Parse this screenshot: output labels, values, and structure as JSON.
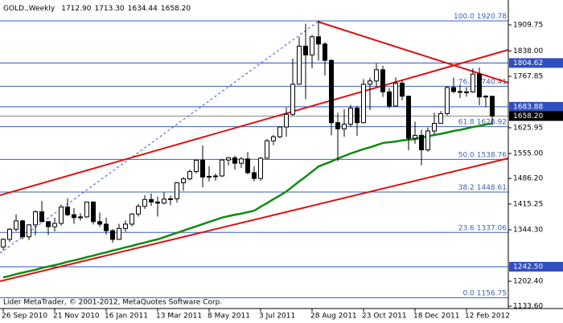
{
  "chart_data": {
    "type": "candlestick",
    "header": {
      "symbol": "GOLD.,Weekly",
      "ohlc": [
        {
          "value": 1712.9,
          "label": "1712.90"
        },
        {
          "value": 1713.3,
          "label": "1713.30"
        },
        {
          "value": 1634.44,
          "label": "1634.44"
        },
        {
          "value": 1658.2,
          "label": "1658.20"
        }
      ]
    },
    "footer": "Lider MetaTrader, © 2001-2012, MetaQuotes Software Corp.",
    "categories": [
      "26 Sep 2010",
      null,
      null,
      null,
      null,
      null,
      null,
      null,
      "21 Nov 2010",
      null,
      null,
      null,
      null,
      null,
      null,
      null,
      "16 Jan 2011",
      null,
      null,
      null,
      null,
      null,
      null,
      null,
      "13 Mar 2011",
      null,
      null,
      null,
      null,
      null,
      null,
      null,
      "8 May 2011",
      null,
      null,
      null,
      null,
      null,
      null,
      null,
      "3 Jul 2011",
      null,
      null,
      null,
      null,
      null,
      null,
      null,
      "28 Aug 2011",
      null,
      null,
      null,
      null,
      null,
      null,
      null,
      "23 Oct 2011",
      null,
      null,
      null,
      null,
      null,
      null,
      null,
      "18 Dec 2011",
      null,
      null,
      null,
      null,
      null,
      null,
      null,
      "12 Feb 2012",
      null,
      null,
      null,
      null
    ],
    "open": [
      1297,
      1318,
      1346,
      1369,
      1325,
      1358,
      1394,
      1367,
      1353,
      1362,
      1407,
      1386,
      1378,
      1380,
      1421,
      1367,
      1360,
      1342,
      1318,
      1348,
      1360,
      1388,
      1409,
      1428,
      1421,
      1418,
      1429,
      1430,
      1474,
      1485,
      1505,
      1536,
      1490,
      1492,
      1493,
      1537,
      1543,
      1528,
      1540,
      1502,
      1486,
      1542,
      1590,
      1601,
      1628,
      1663,
      1746,
      1851,
      1827,
      1877,
      1857,
      1812,
      1640,
      1623,
      1636,
      1680,
      1640,
      1746,
      1755,
      1786,
      1725,
      1686,
      1749,
      1713,
      1597,
      1605,
      1565,
      1617,
      1638,
      1665,
      1737,
      1726,
      1724,
      1725,
      1774,
      1711,
      1712.9
    ],
    "high": [
      1321,
      1349,
      1387,
      1372,
      1360,
      1398,
      1424,
      1368,
      1378,
      1414,
      1431,
      1404,
      1390,
      1421,
      1423,
      1392,
      1378,
      1346,
      1361,
      1370,
      1390,
      1416,
      1440,
      1445,
      1436,
      1448,
      1439,
      1476,
      1490,
      1511,
      1536,
      1577,
      1520,
      1500,
      1538,
      1545,
      1549,
      1545,
      1559,
      1520,
      1545,
      1595,
      1606,
      1630,
      1682,
      1817,
      1877,
      1913,
      1882,
      1921,
      1862,
      1814,
      1667,
      1677,
      1689,
      1687,
      1760,
      1764,
      1803,
      1797,
      1735,
      1765,
      1757,
      1714,
      1643,
      1620,
      1627,
      1667,
      1672,
      1740,
      1764,
      1745,
      1738,
      1790,
      1792,
      1716,
      1713.3
    ],
    "low": [
      1288,
      1311,
      1340,
      1318,
      1316,
      1329,
      1365,
      1330,
      1340,
      1356,
      1382,
      1361,
      1370,
      1377,
      1359,
      1352,
      1331,
      1309,
      1317,
      1339,
      1354,
      1381,
      1402,
      1410,
      1381,
      1415,
      1412,
      1420,
      1452,
      1481,
      1500,
      1462,
      1478,
      1480,
      1490,
      1522,
      1510,
      1515,
      1497,
      1478,
      1480,
      1541,
      1578,
      1597,
      1601,
      1659,
      1744,
      1705,
      1790,
      1811,
      1770,
      1605,
      1534,
      1601,
      1628,
      1604,
      1638,
      1675,
      1740,
      1711,
      1680,
      1685,
      1702,
      1564,
      1582,
      1522,
      1560,
      1608,
      1637,
      1660,
      1721,
      1708,
      1712,
      1722,
      1688,
      1683,
      1634.44
    ],
    "close": [
      1318,
      1346,
      1369,
      1325,
      1358,
      1394,
      1367,
      1353,
      1362,
      1407,
      1386,
      1378,
      1380,
      1421,
      1367,
      1360,
      1342,
      1318,
      1348,
      1360,
      1388,
      1409,
      1428,
      1421,
      1418,
      1429,
      1430,
      1474,
      1485,
      1505,
      1536,
      1490,
      1492,
      1493,
      1537,
      1543,
      1528,
      1540,
      1502,
      1486,
      1542,
      1590,
      1601,
      1628,
      1663,
      1746,
      1851,
      1827,
      1877,
      1857,
      1812,
      1640,
      1623,
      1636,
      1680,
      1640,
      1746,
      1755,
      1786,
      1725,
      1686,
      1749,
      1713,
      1597,
      1605,
      1565,
      1617,
      1638,
      1665,
      1737,
      1726,
      1724,
      1725,
      1774,
      1711,
      1713,
      1658.2
    ],
    "moving_average": {
      "color": "#118a11",
      "values": [
        1213,
        1217,
        1222,
        1226,
        1230,
        1234,
        1239,
        1243,
        1247,
        1251,
        1256,
        1260,
        1264,
        1269,
        1273,
        1278,
        1282,
        1287,
        1291,
        1296,
        1300,
        1305,
        1309,
        1314,
        1318,
        1324,
        1330,
        1336,
        1342,
        1348,
        1354,
        1360,
        1366,
        1372,
        1378,
        1382,
        1386,
        1389,
        1393,
        1397,
        1408,
        1418,
        1429,
        1439,
        1450,
        1464,
        1478,
        1491,
        1505,
        1519,
        1526,
        1533,
        1541,
        1548,
        1555,
        1561,
        1567,
        1572,
        1578,
        1584,
        1586,
        1588,
        1591,
        1593,
        1595,
        1599,
        1602,
        1606,
        1609,
        1613,
        1617,
        1620,
        1624,
        1628,
        1631,
        1635,
        1638
      ]
    },
    "trendlines": [
      {
        "color": "#dd1111",
        "style": "solid",
        "x": [
          -0.5,
          78.5
        ],
        "y": [
          1439.7,
          1841
        ]
      },
      {
        "color": "#dd1111",
        "style": "solid",
        "x": [
          -0.5,
          78.5
        ],
        "y": [
          1202.4,
          1541.7
        ]
      },
      {
        "color": "#dd1111",
        "style": "solid",
        "x": [
          48.9,
          78.5
        ],
        "y": [
          1918.6,
          1750
        ]
      },
      {
        "color": "#3355cc",
        "style": "dashed",
        "x": [
          -0.5,
          48.9
        ],
        "y": [
          1279.8,
          1918.6
        ]
      }
    ],
    "fibonacci": {
      "color": "#3a5fb8",
      "levels": [
        {
          "level": "100.0",
          "value": 1920.78
        },
        {
          "level": "76.4",
          "value": 1740.41
        },
        {
          "level": "61.8",
          "value": 1628.92
        },
        {
          "level": "50.0",
          "value": 1538.76
        },
        {
          "level": "38.2",
          "value": 1448.61
        },
        {
          "level": "23.6",
          "value": 1337.06
        },
        {
          "level": "0.0",
          "value": 1156.75
        }
      ]
    },
    "price_levels": [
      {
        "value": 1804.62,
        "color": "#2f4fc0"
      },
      {
        "value": 1683.88,
        "color": "#2f4fc0"
      },
      {
        "value": 1242.5,
        "label": "1242.50",
        "color": "#2f4fc0"
      },
      {
        "value": 1658.2,
        "label": "1658.20",
        "color": "#000000"
      }
    ],
    "ylim": [
      1129.3,
      1940.8
    ],
    "yticks": [
      {
        "value": 1133.6,
        "label": "1133.60"
      },
      {
        "value": 1202.4,
        "label": "1202.40"
      },
      {
        "value": 1344.3,
        "label": "1344.30"
      },
      1415.25,
      {
        "value": 1486.2,
        "label": "1486.20"
      },
      {
        "value": 1555,
        "label": "1555.00"
      },
      1625.95,
      1767.85,
      {
        "value": 1838,
        "label": "1838.00"
      },
      1909.75
    ],
    "candle_colors": {
      "up": "#ffffff",
      "down": "#000000",
      "outline": "#000000"
    }
  }
}
